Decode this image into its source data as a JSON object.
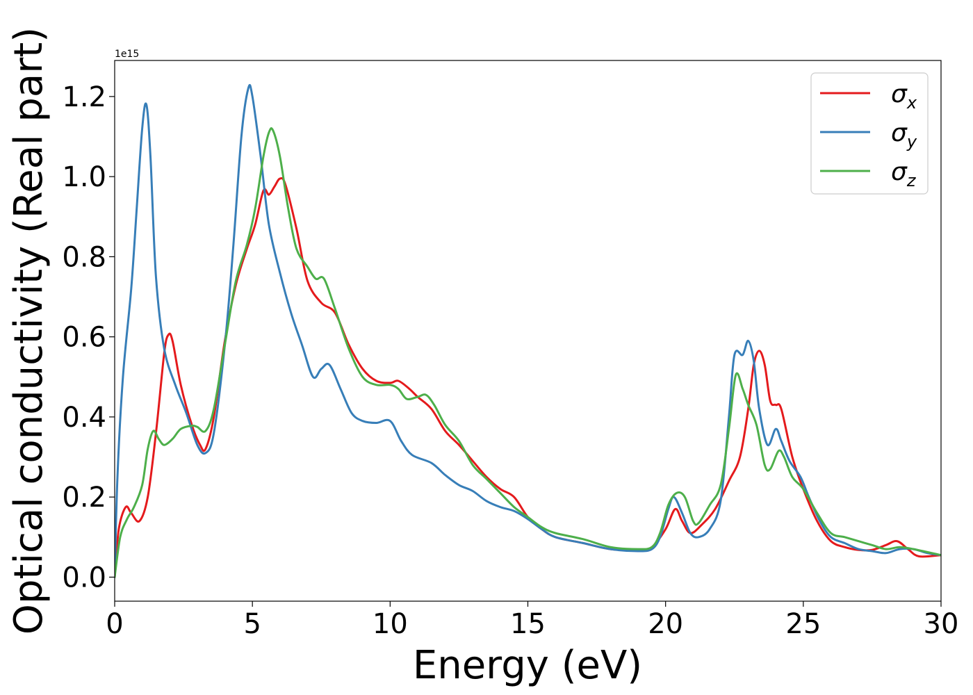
{
  "chart_data": {
    "type": "line",
    "xlabel": "Energy (eV)",
    "ylabel": "Optical conductivity (Real part)",
    "offset_text": "1e15",
    "xlim": [
      0,
      30
    ],
    "ylim": [
      -0.06,
      1.29
    ],
    "xticks": [
      0,
      5,
      10,
      15,
      20,
      25,
      30
    ],
    "xtick_labels": [
      "0",
      "5",
      "10",
      "15",
      "20",
      "25",
      "30"
    ],
    "yticks": [
      0.0,
      0.2,
      0.4,
      0.6,
      0.8,
      1.0,
      1.2
    ],
    "ytick_labels": [
      "0.0",
      "0.2",
      "0.4",
      "0.6",
      "0.8",
      "1.0",
      "1.2"
    ],
    "legend_position": "top-right",
    "grid": false,
    "series": [
      {
        "name": "σx",
        "symbol": "σ",
        "subscript": "x",
        "color": "#e41a1c",
        "points": [
          [
            0,
            0
          ],
          [
            0.15,
            0.12
          ],
          [
            0.4,
            0.175
          ],
          [
            0.6,
            0.16
          ],
          [
            0.9,
            0.14
          ],
          [
            1.2,
            0.2
          ],
          [
            1.5,
            0.36
          ],
          [
            1.8,
            0.56
          ],
          [
            1.95,
            0.605
          ],
          [
            2.1,
            0.59
          ],
          [
            2.4,
            0.48
          ],
          [
            2.8,
            0.38
          ],
          [
            3.1,
            0.33
          ],
          [
            3.3,
            0.32
          ],
          [
            3.6,
            0.4
          ],
          [
            4.0,
            0.59
          ],
          [
            4.4,
            0.73
          ],
          [
            4.8,
            0.82
          ],
          [
            5.1,
            0.88
          ],
          [
            5.4,
            0.965
          ],
          [
            5.6,
            0.955
          ],
          [
            5.8,
            0.975
          ],
          [
            6.0,
            0.995
          ],
          [
            6.2,
            0.98
          ],
          [
            6.6,
            0.87
          ],
          [
            7.0,
            0.74
          ],
          [
            7.5,
            0.685
          ],
          [
            8.0,
            0.66
          ],
          [
            8.5,
            0.58
          ],
          [
            9.0,
            0.52
          ],
          [
            9.5,
            0.49
          ],
          [
            10.0,
            0.485
          ],
          [
            10.3,
            0.49
          ],
          [
            10.7,
            0.47
          ],
          [
            11.0,
            0.45
          ],
          [
            11.5,
            0.42
          ],
          [
            12.0,
            0.365
          ],
          [
            12.5,
            0.33
          ],
          [
            13.0,
            0.29
          ],
          [
            13.5,
            0.25
          ],
          [
            14.0,
            0.22
          ],
          [
            14.5,
            0.2
          ],
          [
            15.0,
            0.15
          ],
          [
            15.5,
            0.12
          ],
          [
            16.0,
            0.1
          ],
          [
            17.0,
            0.085
          ],
          [
            18.0,
            0.07
          ],
          [
            19.0,
            0.068
          ],
          [
            19.5,
            0.075
          ],
          [
            20.0,
            0.12
          ],
          [
            20.35,
            0.17
          ],
          [
            20.6,
            0.14
          ],
          [
            20.9,
            0.11
          ],
          [
            21.3,
            0.13
          ],
          [
            21.8,
            0.17
          ],
          [
            22.3,
            0.24
          ],
          [
            22.7,
            0.3
          ],
          [
            23.0,
            0.42
          ],
          [
            23.2,
            0.53
          ],
          [
            23.4,
            0.565
          ],
          [
            23.6,
            0.53
          ],
          [
            23.8,
            0.44
          ],
          [
            24.0,
            0.43
          ],
          [
            24.2,
            0.42
          ],
          [
            24.6,
            0.3
          ],
          [
            25.0,
            0.22
          ],
          [
            25.5,
            0.14
          ],
          [
            26.0,
            0.09
          ],
          [
            26.5,
            0.075
          ],
          [
            27.0,
            0.068
          ],
          [
            27.5,
            0.068
          ],
          [
            28.0,
            0.08
          ],
          [
            28.4,
            0.09
          ],
          [
            28.8,
            0.07
          ],
          [
            29.2,
            0.052
          ],
          [
            30.0,
            0.055
          ]
        ]
      },
      {
        "name": "σy",
        "symbol": "σ",
        "subscript": "y",
        "color": "#377eb8",
        "points": [
          [
            0,
            0
          ],
          [
            0.1,
            0.25
          ],
          [
            0.3,
            0.5
          ],
          [
            0.6,
            0.72
          ],
          [
            0.8,
            0.92
          ],
          [
            1.0,
            1.12
          ],
          [
            1.15,
            1.18
          ],
          [
            1.3,
            1.05
          ],
          [
            1.5,
            0.75
          ],
          [
            1.8,
            0.57
          ],
          [
            2.2,
            0.48
          ],
          [
            2.6,
            0.41
          ],
          [
            3.0,
            0.33
          ],
          [
            3.3,
            0.31
          ],
          [
            3.6,
            0.36
          ],
          [
            4.0,
            0.58
          ],
          [
            4.3,
            0.82
          ],
          [
            4.6,
            1.1
          ],
          [
            4.85,
            1.22
          ],
          [
            5.0,
            1.2
          ],
          [
            5.3,
            1.05
          ],
          [
            5.6,
            0.88
          ],
          [
            6.0,
            0.76
          ],
          [
            6.4,
            0.66
          ],
          [
            6.8,
            0.58
          ],
          [
            7.2,
            0.5
          ],
          [
            7.5,
            0.52
          ],
          [
            7.8,
            0.53
          ],
          [
            8.2,
            0.47
          ],
          [
            8.6,
            0.41
          ],
          [
            9.0,
            0.39
          ],
          [
            9.5,
            0.385
          ],
          [
            10.0,
            0.39
          ],
          [
            10.4,
            0.34
          ],
          [
            10.8,
            0.305
          ],
          [
            11.5,
            0.285
          ],
          [
            12.0,
            0.255
          ],
          [
            12.5,
            0.23
          ],
          [
            13.0,
            0.215
          ],
          [
            13.5,
            0.19
          ],
          [
            14.0,
            0.175
          ],
          [
            14.5,
            0.165
          ],
          [
            15.0,
            0.145
          ],
          [
            15.5,
            0.12
          ],
          [
            16.0,
            0.1
          ],
          [
            17.0,
            0.085
          ],
          [
            18.0,
            0.07
          ],
          [
            19.0,
            0.065
          ],
          [
            19.5,
            0.07
          ],
          [
            19.8,
            0.1
          ],
          [
            20.1,
            0.17
          ],
          [
            20.3,
            0.2
          ],
          [
            20.6,
            0.16
          ],
          [
            20.9,
            0.11
          ],
          [
            21.2,
            0.1
          ],
          [
            21.6,
            0.12
          ],
          [
            22.0,
            0.19
          ],
          [
            22.3,
            0.4
          ],
          [
            22.5,
            0.555
          ],
          [
            22.8,
            0.555
          ],
          [
            23.0,
            0.59
          ],
          [
            23.2,
            0.54
          ],
          [
            23.4,
            0.42
          ],
          [
            23.7,
            0.33
          ],
          [
            24.0,
            0.37
          ],
          [
            24.2,
            0.34
          ],
          [
            24.5,
            0.29
          ],
          [
            24.9,
            0.25
          ],
          [
            25.2,
            0.2
          ],
          [
            25.6,
            0.14
          ],
          [
            26.0,
            0.1
          ],
          [
            26.5,
            0.085
          ],
          [
            27.0,
            0.07
          ],
          [
            27.5,
            0.065
          ],
          [
            28.0,
            0.06
          ],
          [
            28.5,
            0.07
          ],
          [
            29.0,
            0.07
          ],
          [
            29.5,
            0.06
          ],
          [
            30.0,
            0.055
          ]
        ]
      },
      {
        "name": "σz",
        "symbol": "σ",
        "subscript": "z",
        "color": "#4daf4a",
        "points": [
          [
            0,
            0
          ],
          [
            0.2,
            0.1
          ],
          [
            0.45,
            0.145
          ],
          [
            0.7,
            0.175
          ],
          [
            1.0,
            0.23
          ],
          [
            1.2,
            0.32
          ],
          [
            1.4,
            0.365
          ],
          [
            1.6,
            0.345
          ],
          [
            1.8,
            0.33
          ],
          [
            2.1,
            0.345
          ],
          [
            2.4,
            0.37
          ],
          [
            2.8,
            0.378
          ],
          [
            3.0,
            0.375
          ],
          [
            3.3,
            0.365
          ],
          [
            3.6,
            0.42
          ],
          [
            4.0,
            0.58
          ],
          [
            4.4,
            0.74
          ],
          [
            4.8,
            0.83
          ],
          [
            5.1,
            0.92
          ],
          [
            5.4,
            1.05
          ],
          [
            5.6,
            1.11
          ],
          [
            5.75,
            1.115
          ],
          [
            6.0,
            1.05
          ],
          [
            6.3,
            0.92
          ],
          [
            6.6,
            0.82
          ],
          [
            7.0,
            0.775
          ],
          [
            7.3,
            0.745
          ],
          [
            7.6,
            0.745
          ],
          [
            8.0,
            0.67
          ],
          [
            8.5,
            0.57
          ],
          [
            9.0,
            0.5
          ],
          [
            9.5,
            0.48
          ],
          [
            10.0,
            0.48
          ],
          [
            10.3,
            0.47
          ],
          [
            10.6,
            0.445
          ],
          [
            11.0,
            0.45
          ],
          [
            11.3,
            0.455
          ],
          [
            11.6,
            0.43
          ],
          [
            12.0,
            0.38
          ],
          [
            12.5,
            0.34
          ],
          [
            13.0,
            0.28
          ],
          [
            13.5,
            0.245
          ],
          [
            14.0,
            0.21
          ],
          [
            14.5,
            0.175
          ],
          [
            15.0,
            0.15
          ],
          [
            15.5,
            0.125
          ],
          [
            16.0,
            0.11
          ],
          [
            17.0,
            0.095
          ],
          [
            18.0,
            0.075
          ],
          [
            19.0,
            0.07
          ],
          [
            19.5,
            0.075
          ],
          [
            19.8,
            0.11
          ],
          [
            20.1,
            0.18
          ],
          [
            20.4,
            0.21
          ],
          [
            20.7,
            0.2
          ],
          [
            21.0,
            0.14
          ],
          [
            21.2,
            0.135
          ],
          [
            21.6,
            0.18
          ],
          [
            22.0,
            0.23
          ],
          [
            22.3,
            0.37
          ],
          [
            22.55,
            0.505
          ],
          [
            22.8,
            0.47
          ],
          [
            23.0,
            0.43
          ],
          [
            23.3,
            0.38
          ],
          [
            23.6,
            0.28
          ],
          [
            23.8,
            0.27
          ],
          [
            24.1,
            0.315
          ],
          [
            24.3,
            0.3
          ],
          [
            24.6,
            0.25
          ],
          [
            25.0,
            0.22
          ],
          [
            25.5,
            0.16
          ],
          [
            26.0,
            0.11
          ],
          [
            26.5,
            0.1
          ],
          [
            27.0,
            0.09
          ],
          [
            27.5,
            0.08
          ],
          [
            28.0,
            0.07
          ],
          [
            28.5,
            0.075
          ],
          [
            29.0,
            0.07
          ],
          [
            30.0,
            0.055
          ]
        ]
      }
    ]
  }
}
